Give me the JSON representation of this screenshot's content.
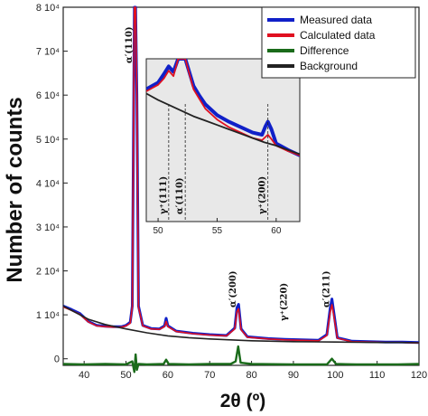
{
  "chart_data": {
    "type": "line",
    "xlabel": "2θ (º)",
    "ylabel": "Number of counts",
    "xlim": [
      35,
      120
    ],
    "ylim": [
      -1500,
      80000
    ],
    "x_ticks": [
      "40",
      "50",
      "60",
      "70",
      "80",
      "90",
      "100",
      "110",
      "120"
    ],
    "y_ticks": [
      "0",
      "1 10⁴",
      "2 10⁴",
      "3 10⁴",
      "4 10⁴",
      "5 10⁴",
      "6 10⁴",
      "7 10⁴",
      "8 10⁴"
    ],
    "legend": {
      "placement": "top-right",
      "entries": [
        {
          "label": "Measured data",
          "color": "#1020c8"
        },
        {
          "label": "Calculated data",
          "color": "#e01020"
        },
        {
          "label": "Difference",
          "color": "#1a6b1a"
        },
        {
          "label": "Background",
          "color": "#222222"
        }
      ]
    },
    "series": [
      {
        "name": "Measured data",
        "x": [
          35,
          37,
          39,
          41,
          43,
          45,
          47,
          49,
          50,
          51,
          51.5,
          52,
          52.3,
          52.6,
          53,
          54,
          56,
          58,
          59.2,
          59.6,
          60,
          62,
          66,
          70,
          74,
          76,
          76.5,
          76.9,
          77.5,
          79,
          84,
          88,
          92,
          96,
          98,
          98.8,
          99.2,
          99.6,
          100.5,
          104,
          108,
          112,
          116,
          120
        ],
        "y": [
          12000,
          11200,
          10300,
          8500,
          7600,
          7400,
          7300,
          7300,
          7600,
          8300,
          12000,
          80000,
          80000,
          60000,
          12000,
          7600,
          6900,
          6800,
          7500,
          9200,
          7500,
          6300,
          5800,
          5500,
          5300,
          7000,
          11600,
          12400,
          6800,
          5000,
          4600,
          4400,
          4300,
          4200,
          5500,
          11500,
          13600,
          11000,
          4800,
          4000,
          3900,
          3800,
          3800,
          3700
        ]
      },
      {
        "name": "Calculated data",
        "x": [
          35,
          37,
          39,
          41,
          43,
          45,
          47,
          49,
          50,
          51,
          51.5,
          52,
          52.3,
          52.6,
          53,
          54,
          56,
          58,
          59.2,
          59.6,
          60,
          62,
          66,
          70,
          74,
          76,
          76.5,
          76.9,
          77.5,
          79,
          84,
          88,
          92,
          96,
          98,
          98.8,
          99.2,
          99.6,
          100.5,
          104,
          108,
          112,
          116,
          120
        ],
        "y": [
          11800,
          11000,
          10100,
          8400,
          7500,
          7300,
          7200,
          7200,
          7500,
          8100,
          11800,
          80000,
          80000,
          59000,
          11700,
          7500,
          6800,
          6700,
          7300,
          8500,
          7300,
          6200,
          5700,
          5400,
          5200,
          6800,
          10700,
          11400,
          6600,
          4900,
          4500,
          4300,
          4200,
          4100,
          5300,
          10600,
          12300,
          10200,
          4700,
          3900,
          3800,
          3700,
          3700,
          3600
        ]
      },
      {
        "name": "Difference",
        "x": [
          35,
          40,
          45,
          50,
          51.5,
          52,
          52.3,
          52.6,
          53,
          55,
          59,
          59.6,
          60.2,
          65,
          70,
          75,
          76.2,
          76.8,
          77.4,
          80,
          90,
          98,
          99.2,
          100.2,
          105,
          110,
          115,
          120
        ],
        "y": [
          -1200,
          -1300,
          -1200,
          -1300,
          -600,
          -3000,
          1000,
          -2500,
          -1200,
          -1300,
          -1200,
          -200,
          -1200,
          -1300,
          -1200,
          -1200,
          -600,
          2800,
          -900,
          -1200,
          -1300,
          -1300,
          0,
          -1200,
          -1300,
          -1300,
          -1300,
          -1200
        ]
      },
      {
        "name": "Background",
        "x": [
          35,
          38,
          41,
          45,
          50,
          55,
          60,
          65,
          70,
          75,
          80,
          85,
          90,
          95,
          100,
          105,
          110,
          115,
          120
        ],
        "y": [
          12000,
          10500,
          9000,
          7800,
          6800,
          5900,
          5200,
          4800,
          4500,
          4300,
          4100,
          4000,
          3900,
          3850,
          3800,
          3750,
          3700,
          3700,
          3650
        ]
      }
    ],
    "annotations": [
      {
        "text": "α′(110)",
        "x": 52
      },
      {
        "text": "α′(200)",
        "x": 76.8
      },
      {
        "text": "γ⁺(220)",
        "x": 89
      },
      {
        "text": "α′(211)",
        "x": 99.2
      }
    ],
    "inset": {
      "xlim": [
        49,
        62
      ],
      "x_ticks": [
        "50",
        "55",
        "60"
      ],
      "grid": false,
      "background": "#e8e8e8",
      "markers": [
        {
          "text": "γ⁺(111)",
          "x": 50.9
        },
        {
          "text": "α′(110)",
          "x": 52.3
        },
        {
          "text": "γ⁺(200)",
          "x": 59.3
        }
      ],
      "series": [
        {
          "name": "Measured data",
          "x": [
            49,
            49.5,
            50,
            50.5,
            50.9,
            51.3,
            51.7,
            52,
            52.3,
            53,
            53.5,
            54,
            55,
            56,
            57,
            58,
            58.8,
            59.1,
            59.3,
            59.6,
            60,
            61,
            62
          ],
          "y": [
            0.72,
            0.75,
            0.78,
            0.86,
            0.93,
            0.88,
            1.0,
            1.0,
            1.0,
            0.75,
            0.66,
            0.58,
            0.48,
            0.42,
            0.37,
            0.32,
            0.3,
            0.38,
            0.42,
            0.35,
            0.22,
            0.16,
            0.11
          ]
        },
        {
          "name": "Calculated data",
          "x": [
            49,
            49.5,
            50,
            50.5,
            50.9,
            51.3,
            51.7,
            52,
            52.3,
            53,
            53.5,
            54,
            55,
            56,
            57,
            58,
            58.8,
            59.1,
            59.3,
            59.6,
            60,
            61,
            62
          ],
          "y": [
            0.7,
            0.73,
            0.76,
            0.82,
            0.89,
            0.84,
            1.0,
            1.0,
            1.0,
            0.72,
            0.63,
            0.54,
            0.44,
            0.37,
            0.32,
            0.27,
            0.25,
            0.28,
            0.3,
            0.26,
            0.2,
            0.15,
            0.11
          ]
        },
        {
          "name": "Background",
          "x": [
            49,
            50,
            51,
            52,
            53,
            54,
            55,
            56,
            57,
            58,
            59,
            60,
            61,
            62
          ],
          "y": [
            0.68,
            0.62,
            0.57,
            0.52,
            0.47,
            0.43,
            0.39,
            0.35,
            0.31,
            0.27,
            0.23,
            0.2,
            0.16,
            0.12
          ]
        }
      ]
    }
  }
}
